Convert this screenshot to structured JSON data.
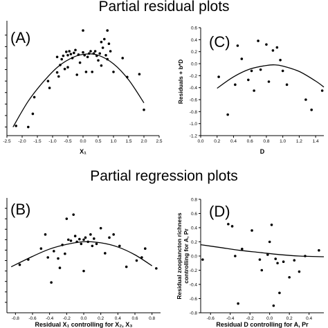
{
  "figure": {
    "top_title": "Partial residual plots",
    "middle_title": "Partial regression plots"
  },
  "chart_data": [
    {
      "type": "scatter",
      "panel_label": "(A)",
      "title": "",
      "xlabel": "X₁",
      "ylabel": "",
      "xlim": [
        -2.5,
        2.5
      ],
      "x_ticks": [
        -2.5,
        -2.0,
        -1.5,
        -1.0,
        -0.5,
        0.0,
        0.5,
        1.0,
        1.5,
        2.0,
        2.5
      ],
      "x_tick_labels": [
        "-2.5",
        "-2.0",
        "-1.5",
        "-1.0",
        "-0.5",
        "0.0",
        "0.5",
        "1.0",
        "1.5",
        "2.0",
        "2.5"
      ],
      "ylim": [
        -1.35,
        0.65
      ],
      "y_ticks": [
        -1.2,
        -1.0,
        -0.8,
        -0.6,
        -0.4,
        -0.2,
        0.0,
        0.2,
        0.4
      ],
      "grid": false,
      "fit_curve": [
        [
          -2.3,
          -1.2
        ],
        [
          -1.8,
          -0.75
        ],
        [
          -1.3,
          -0.41
        ],
        [
          -0.8,
          -0.14
        ],
        [
          -0.3,
          0.02
        ],
        [
          0.1,
          0.07
        ],
        [
          0.5,
          0.05
        ],
        [
          1.0,
          -0.1
        ],
        [
          1.5,
          -0.38
        ],
        [
          2.0,
          -0.78
        ]
      ],
      "points": [
        [
          -2.2,
          -1.18
        ],
        [
          -1.8,
          -1.2
        ],
        [
          -1.65,
          -0.97
        ],
        [
          -1.6,
          -0.68
        ],
        [
          -1.15,
          -0.4
        ],
        [
          -1.1,
          -0.52
        ],
        [
          -0.85,
          -0.25
        ],
        [
          -0.85,
          0.02
        ],
        [
          -0.8,
          -0.32
        ],
        [
          -0.75,
          -0.12
        ],
        [
          -0.7,
          -0.02
        ],
        [
          -0.65,
          0.04
        ],
        [
          -0.6,
          -0.19
        ],
        [
          -0.55,
          0.11
        ],
        [
          -0.5,
          0.05
        ],
        [
          -0.5,
          -0.16
        ],
        [
          -0.45,
          0.12
        ],
        [
          -0.4,
          0.07
        ],
        [
          -0.35,
          0.0
        ],
        [
          -0.3,
          0.09
        ],
        [
          -0.25,
          0.14
        ],
        [
          -0.2,
          -0.29
        ],
        [
          -0.15,
          0.06
        ],
        [
          -0.1,
          -0.08
        ],
        [
          0.0,
          0.1
        ],
        [
          0.0,
          0.48
        ],
        [
          0.05,
          0.05
        ],
        [
          0.1,
          -0.24
        ],
        [
          0.15,
          0.02
        ],
        [
          0.2,
          0.08
        ],
        [
          0.25,
          0.12
        ],
        [
          0.3,
          -0.24
        ],
        [
          0.35,
          0.08
        ],
        [
          0.4,
          0.12
        ],
        [
          0.45,
          0.04
        ],
        [
          0.5,
          -0.04
        ],
        [
          0.55,
          0.08
        ],
        [
          0.6,
          -0.13
        ],
        [
          0.6,
          0.28
        ],
        [
          0.65,
          0.18
        ],
        [
          0.7,
          0.33
        ],
        [
          0.75,
          0.05
        ],
        [
          0.8,
          -0.02
        ],
        [
          0.8,
          0.48
        ],
        [
          0.85,
          0.25
        ],
        [
          0.9,
          0.12
        ],
        [
          1.0,
          -0.24
        ],
        [
          1.3,
          0.0
        ],
        [
          1.45,
          -0.33
        ],
        [
          1.85,
          -0.28
        ],
        [
          2.0,
          -0.9
        ]
      ]
    },
    {
      "type": "scatter",
      "panel_label": "(C)",
      "title": "",
      "xlabel": "D",
      "ylabel": "Residuals + b*D",
      "xlim": [
        0.0,
        1.5
      ],
      "x_ticks": [
        0.0,
        0.2,
        0.4,
        0.6,
        0.8,
        1.0,
        1.2,
        1.4
      ],
      "x_tick_labels": [
        "0.0",
        "0.2",
        "0.4",
        "0.6",
        "0.8",
        "1.0",
        "1.2",
        "1.4"
      ],
      "ylim": [
        -1.2,
        0.6
      ],
      "y_ticks": [
        -1.2,
        -1.0,
        -0.8,
        -0.6,
        -0.4,
        -0.2,
        0.0,
        0.2,
        0.4,
        0.6
      ],
      "y_tick_labels": [
        "-1.2",
        "-1.0",
        "-0.8",
        "-0.6",
        "-0.4",
        "-0.2",
        "0.0",
        "0.2",
        "0.4",
        "0.6"
      ],
      "grid": false,
      "fit_curve": [
        [
          0.2,
          -0.41
        ],
        [
          0.4,
          -0.22
        ],
        [
          0.6,
          -0.09
        ],
        [
          0.8,
          -0.03
        ],
        [
          0.9,
          -0.02
        ],
        [
          1.0,
          -0.04
        ],
        [
          1.2,
          -0.13
        ],
        [
          1.4,
          -0.29
        ],
        [
          1.5,
          -0.39
        ]
      ],
      "points": [
        [
          0.22,
          -0.22
        ],
        [
          0.33,
          -0.85
        ],
        [
          0.42,
          -0.35
        ],
        [
          0.45,
          0.3
        ],
        [
          0.5,
          0.08
        ],
        [
          0.58,
          -0.27
        ],
        [
          0.62,
          -0.12
        ],
        [
          0.65,
          -0.45
        ],
        [
          0.7,
          0.38
        ],
        [
          0.73,
          -0.1
        ],
        [
          0.8,
          0.32
        ],
        [
          0.83,
          -0.3
        ],
        [
          0.88,
          0.22
        ],
        [
          0.93,
          0.27
        ],
        [
          0.97,
          0.06
        ],
        [
          1.0,
          -0.12
        ],
        [
          1.05,
          -0.35
        ],
        [
          1.28,
          -0.6
        ],
        [
          1.35,
          -0.77
        ],
        [
          1.48,
          -0.45
        ]
      ]
    },
    {
      "type": "scatter",
      "panel_label": "(B)",
      "title": "",
      "xlabel": "Residual X₁ controlling for X₂, X₃",
      "ylabel": "",
      "xlim": [
        -0.9,
        0.9
      ],
      "x_ticks": [
        -0.8,
        -0.6,
        -0.4,
        -0.2,
        0.0,
        0.2,
        0.4,
        0.6,
        0.8
      ],
      "x_tick_labels": [
        "-0.8",
        "-0.6",
        "-0.4",
        "-0.2",
        "0.0",
        "0.2",
        "0.4",
        "0.6",
        "0.8"
      ],
      "ylim": [
        -1.2,
        1.0
      ],
      "y_ticks": [
        -1.0,
        -0.8,
        -0.6,
        -0.4,
        -0.2,
        0.0,
        0.2,
        0.4,
        0.6,
        0.8
      ],
      "grid": false,
      "fit_curve": [
        [
          -0.85,
          -0.32
        ],
        [
          -0.6,
          -0.12
        ],
        [
          -0.4,
          0.02
        ],
        [
          -0.2,
          0.11
        ],
        [
          0.0,
          0.16
        ],
        [
          0.2,
          0.14
        ],
        [
          0.4,
          0.06
        ],
        [
          0.6,
          -0.09
        ],
        [
          0.8,
          -0.3
        ]
      ],
      "points": [
        [
          -0.75,
          -0.28
        ],
        [
          -0.65,
          -0.18
        ],
        [
          -0.5,
          0.03
        ],
        [
          -0.45,
          0.3
        ],
        [
          -0.42,
          -0.14
        ],
        [
          -0.38,
          -0.62
        ],
        [
          -0.35,
          -0.02
        ],
        [
          -0.3,
          -0.16
        ],
        [
          -0.28,
          -0.34
        ],
        [
          -0.25,
          0.1
        ],
        [
          -0.22,
          -0.07
        ],
        [
          -0.2,
          0.6
        ],
        [
          -0.18,
          0.2
        ],
        [
          -0.15,
          0.18
        ],
        [
          -0.12,
          0.68
        ],
        [
          -0.1,
          0.27
        ],
        [
          -0.08,
          0.16
        ],
        [
          -0.05,
          0.21
        ],
        [
          -0.03,
          0.12
        ],
        [
          0.0,
          0.2
        ],
        [
          0.0,
          -0.4
        ],
        [
          0.02,
          0.24
        ],
        [
          0.05,
          0.16
        ],
        [
          0.08,
          0.3
        ],
        [
          0.1,
          0.08
        ],
        [
          0.12,
          0.22
        ],
        [
          0.15,
          0.12
        ],
        [
          0.2,
          0.42
        ],
        [
          0.25,
          -0.06
        ],
        [
          0.3,
          0.24
        ],
        [
          0.35,
          0.3
        ],
        [
          0.42,
          0.08
        ],
        [
          0.5,
          -0.32
        ],
        [
          0.62,
          -0.2
        ],
        [
          0.68,
          -0.14
        ],
        [
          0.72,
          0.03
        ],
        [
          0.85,
          -0.35
        ]
      ]
    },
    {
      "type": "scatter",
      "panel_label": "(D)",
      "title": "",
      "xlabel": "Residual D controlling for A, Pr",
      "ylabel": "Residual zooplancton richness controlling for A, Pr",
      "xlim": [
        -0.7,
        0.55
      ],
      "x_ticks": [
        -0.6,
        -0.4,
        -0.2,
        0.0,
        0.2,
        0.4
      ],
      "x_tick_labels": [
        "-0.6",
        "-0.4",
        "-0.2",
        "0.0",
        "0.2",
        "0.4"
      ],
      "ylim": [
        -0.8,
        0.8
      ],
      "y_ticks": [
        -0.8,
        -0.6,
        -0.4,
        -0.2,
        0.0,
        0.2,
        0.4,
        0.6,
        0.8
      ],
      "y_tick_labels": [
        "-0.8",
        "-0.6",
        "-0.4",
        "-0.2",
        "0.0",
        "0.2",
        "0.4",
        "0.6",
        "0.8"
      ],
      "grid": false,
      "fit_curve": [
        [
          -0.7,
          0.16
        ],
        [
          -0.5,
          0.12
        ],
        [
          -0.3,
          0.08
        ],
        [
          -0.1,
          0.05
        ],
        [
          0.1,
          0.02
        ],
        [
          0.3,
          0.0
        ],
        [
          0.55,
          -0.01
        ]
      ],
      "points": [
        [
          -0.68,
          -0.05
        ],
        [
          -0.42,
          0.45
        ],
        [
          -0.38,
          0.42
        ],
        [
          -0.35,
          0.0
        ],
        [
          -0.32,
          -0.67
        ],
        [
          -0.28,
          0.1
        ],
        [
          -0.18,
          0.36
        ],
        [
          -0.1,
          -0.05
        ],
        [
          -0.08,
          -0.2
        ],
        [
          -0.02,
          0.02
        ],
        [
          0.0,
          0.2
        ],
        [
          0.02,
          0.44
        ],
        [
          0.04,
          -0.7
        ],
        [
          0.06,
          -0.04
        ],
        [
          0.08,
          -0.1
        ],
        [
          0.1,
          -0.52
        ],
        [
          0.14,
          -0.08
        ],
        [
          0.2,
          -0.3
        ],
        [
          0.25,
          -0.06
        ],
        [
          0.3,
          -0.22
        ],
        [
          0.36,
          0.0
        ],
        [
          0.5,
          0.08
        ]
      ]
    }
  ]
}
